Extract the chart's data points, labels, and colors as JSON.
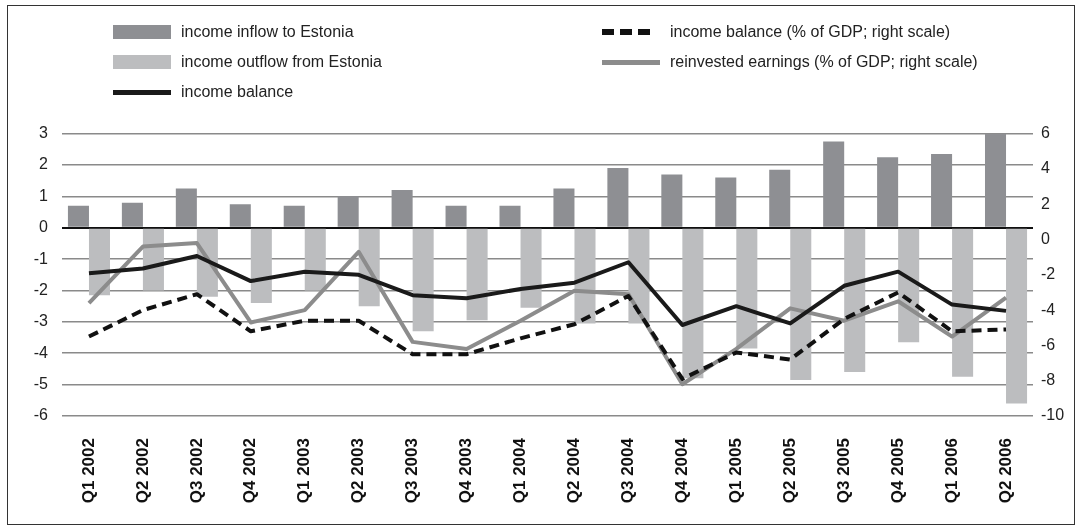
{
  "chart_data": {
    "type": "bar",
    "categories": [
      "Q1 2002",
      "Q2 2002",
      "Q3 2002",
      "Q4 2002",
      "Q1 2003",
      "Q2 2003",
      "Q3 2003",
      "Q4 2003",
      "Q1 2004",
      "Q2 2004",
      "Q3 2004",
      "Q4 2004",
      "Q1 2005",
      "Q2 2005",
      "Q3 2005",
      "Q4 2005",
      "Q1 2006",
      "Q2 2006"
    ],
    "series": [
      {
        "name": "income inflow to Estonia",
        "color": "#8e8f93",
        "values": [
          0.7,
          0.8,
          1.25,
          0.75,
          0.7,
          1.0,
          1.2,
          0.7,
          0.7,
          1.25,
          1.9,
          1.7,
          1.6,
          1.85,
          2.75,
          2.25,
          2.35,
          3.0
        ]
      },
      {
        "name": "income outflow from Estonia",
        "color": "#bcbdbf",
        "values": [
          -2.15,
          -2.0,
          -2.2,
          -2.4,
          -2.0,
          -2.5,
          -3.3,
          -2.95,
          -2.55,
          -3.05,
          -3.05,
          -4.8,
          -3.85,
          -4.85,
          -4.6,
          -3.65,
          -4.75,
          -5.6
        ]
      },
      {
        "name": "income balance",
        "type": "line",
        "color": "#1a1a1a",
        "line_style": "solid",
        "values": [
          -1.45,
          -1.3,
          -0.9,
          -1.7,
          -1.4,
          -1.5,
          -2.15,
          -2.25,
          -1.95,
          -1.75,
          -1.1,
          -3.1,
          -2.5,
          -3.05,
          -1.85,
          -1.4,
          -2.45,
          -2.65
        ]
      },
      {
        "name": "income balance (% of GDP; right scale)",
        "type": "line",
        "axis": "y2",
        "color": "#111111",
        "line_style": "dashed",
        "values": [
          -5.5,
          -4.0,
          -3.1,
          -5.2,
          -4.6,
          -4.6,
          -6.5,
          -6.5,
          -5.6,
          -4.8,
          -3.2,
          -7.9,
          -6.4,
          -6.8,
          -4.5,
          -3.0,
          -5.2,
          -5.1
        ]
      },
      {
        "name": "reinvested earnings (% of GDP; right scale)",
        "type": "line",
        "axis": "y2",
        "color": "#8c8c8c",
        "line_style": "solid",
        "values": [
          -3.6,
          -0.4,
          -0.2,
          -4.7,
          -4.0,
          -0.7,
          -5.8,
          -6.2,
          -4.6,
          -2.9,
          -3.1,
          -8.2,
          -6.2,
          -3.9,
          -4.6,
          -3.5,
          -5.5,
          -3.3
        ]
      }
    ],
    "ylim": [
      -6,
      3
    ],
    "yticks": [
      -6,
      -5,
      -4,
      -3,
      -2,
      -1,
      0,
      1,
      2,
      3
    ],
    "y2lim": [
      -10,
      6
    ],
    "y2ticks": [
      -10,
      -8,
      -6,
      -4,
      -2,
      0,
      2,
      4,
      6
    ],
    "grid": "y",
    "legend": "top",
    "marker": "none"
  }
}
